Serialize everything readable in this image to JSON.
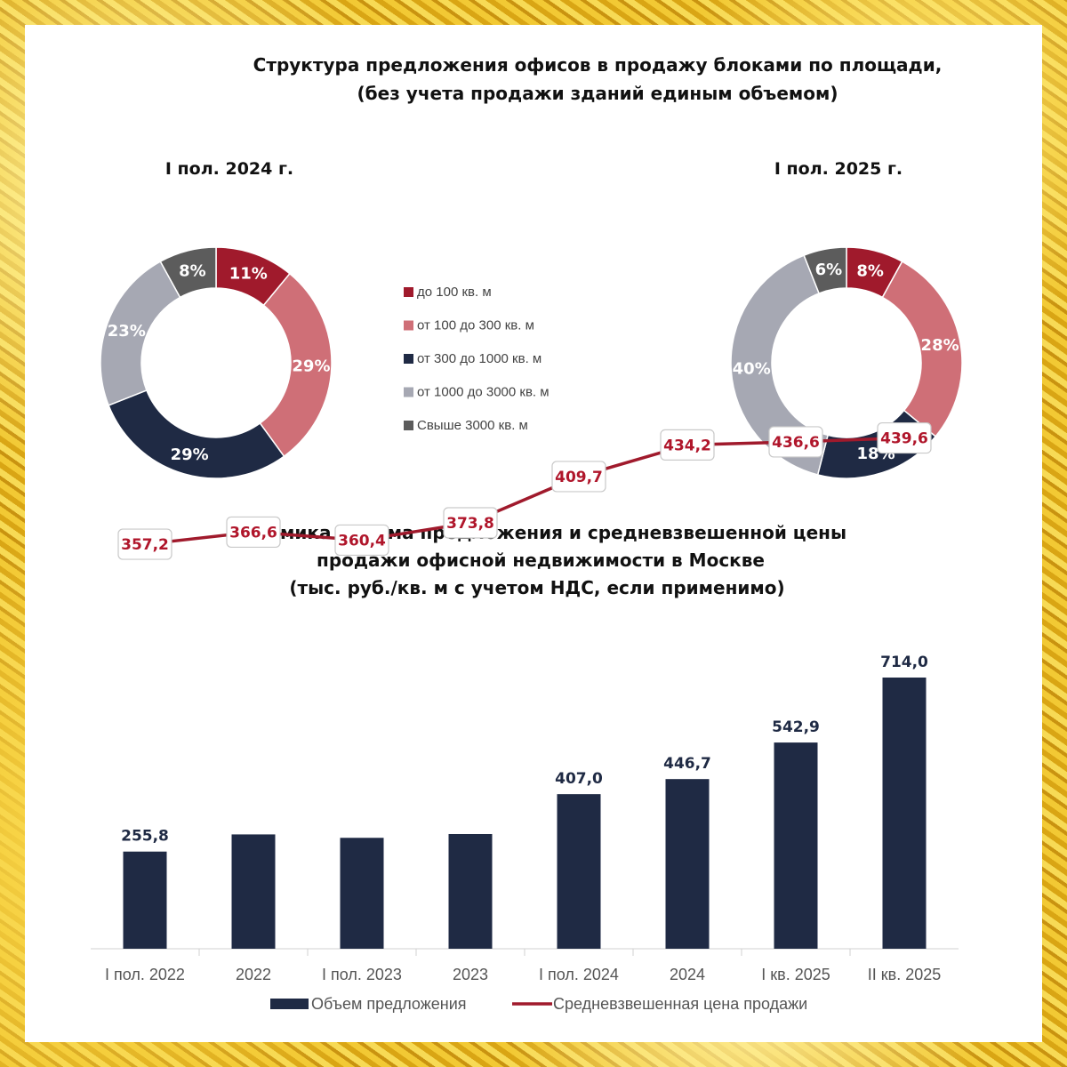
{
  "top": {
    "title_line1": "Структура предложения офисов в продажу блоками по площади,",
    "title_line2": "(без учета продажи зданий единым объемом)"
  },
  "bottom": {
    "title_line1": "Динамика объема предложения и средневзвешенной цены",
    "title_line2": "продажи офисной недвижимости в Москве",
    "title_line3": "(тыс. руб./кв. м с учетом НДС, если применимо)"
  },
  "chart_data": [
    {
      "type": "pie",
      "donut": true,
      "title": "I пол. 2024 г.",
      "categories": [
        "до 100 кв. м",
        "от 100 до 300 кв. м",
        "от 300 до 1000 кв. м",
        "от 1000 до 3000 кв. м",
        "Свыше 3000 кв. м"
      ],
      "values": [
        11,
        29,
        29,
        23,
        8
      ],
      "labels": [
        "11%",
        "29%",
        "29%",
        "23%",
        "8%"
      ],
      "colors": [
        "#a01a2c",
        "#cf6f77",
        "#1f2a44",
        "#a6a8b3",
        "#5c5c5c"
      ]
    },
    {
      "type": "pie",
      "donut": true,
      "title": "I пол. 2025 г.",
      "categories": [
        "до 100 кв. м",
        "от 100 до 300 кв. м",
        "от 300 до 1000 кв. м",
        "от 1000 до 3000 кв. м",
        "Свыше 3000 кв. м"
      ],
      "values": [
        8,
        28,
        18,
        40,
        6
      ],
      "labels": [
        "8%",
        "28%",
        "18%",
        "40%",
        "6%"
      ],
      "colors": [
        "#a01a2c",
        "#cf6f77",
        "#1f2a44",
        "#a6a8b3",
        "#5c5c5c"
      ]
    },
    {
      "type": "bar",
      "categories": [
        "I пол. 2022",
        "2022",
        "I пол. 2023",
        "2023",
        "I пол. 2024",
        "2024",
        "I кв. 2025",
        "II кв. 2025"
      ],
      "series": [
        {
          "name": "Объем предложения",
          "type": "bar",
          "color": "#1f2a44",
          "values": [
            255.8,
            301.0,
            292.0,
            302.0,
            407.0,
            446.7,
            542.9,
            714.0
          ],
          "labels": [
            "255,8",
            "",
            "",
            "",
            "407,0",
            "446,7",
            "542,9",
            "714,0"
          ]
        },
        {
          "name": "Средневзвешенная цена продажи",
          "type": "line",
          "color": "#a01a2c",
          "values": [
            357.2,
            366.6,
            360.4,
            373.8,
            409.7,
            434.2,
            436.6,
            439.6
          ],
          "labels": [
            "357,2",
            "366,6",
            "360,4",
            "373,8",
            "409,7",
            "434,2",
            "436,6",
            "439,6"
          ]
        }
      ],
      "legend": "bottom",
      "grid": false
    }
  ]
}
